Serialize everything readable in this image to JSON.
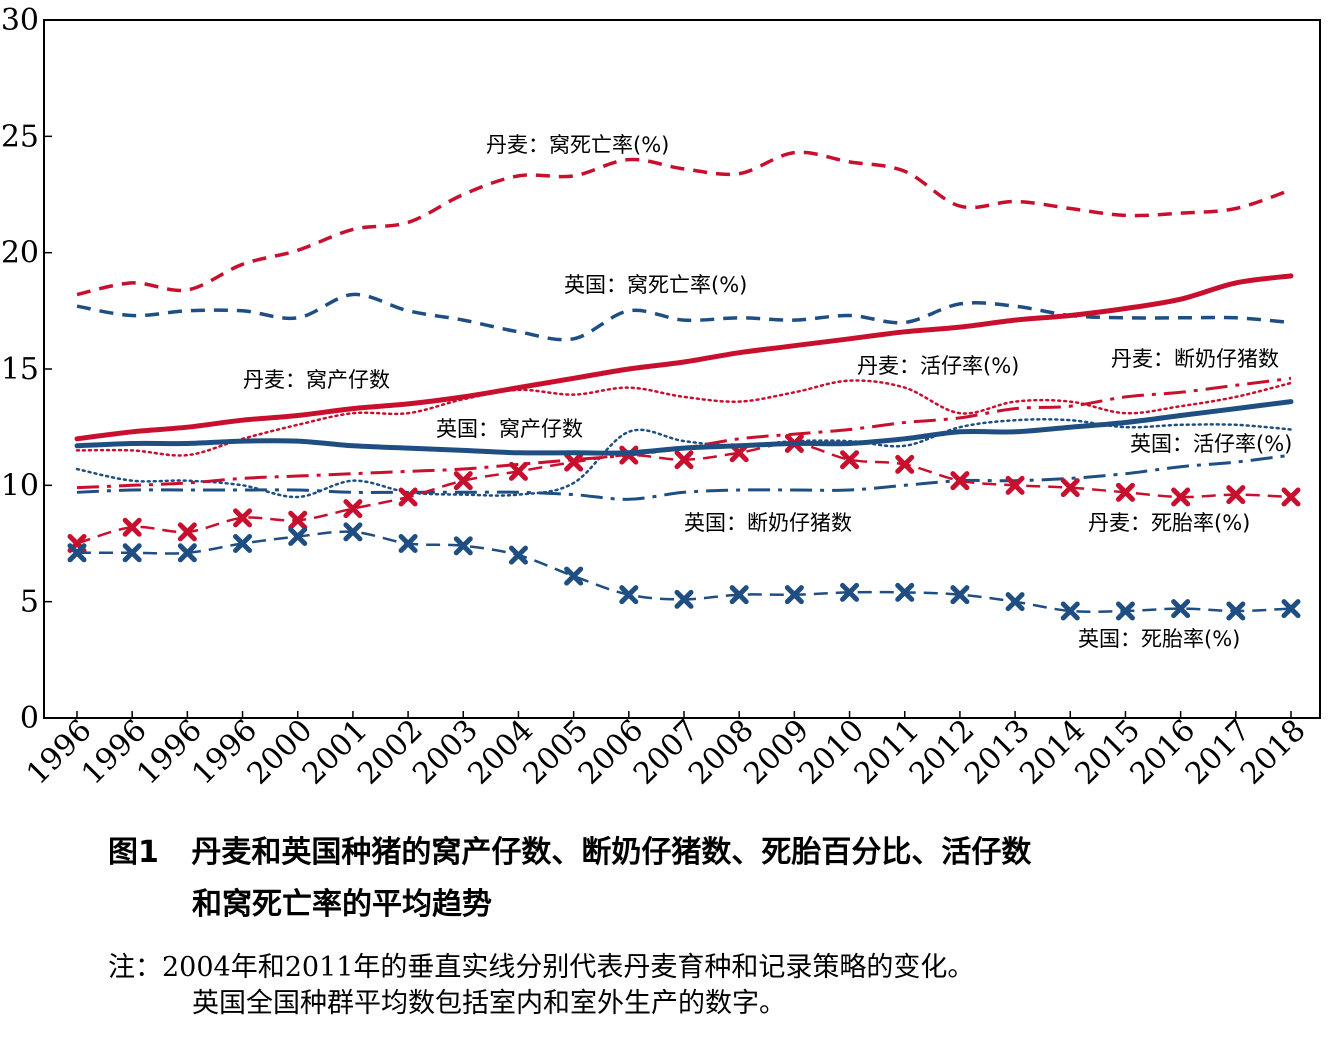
{
  "chart_data": {
    "type": "line",
    "ylim": [
      0,
      30
    ],
    "yticks": [
      0,
      5,
      10,
      15,
      20,
      25,
      30
    ],
    "categories": [
      "1996",
      "1996",
      "1996",
      "1996",
      "2000",
      "2001",
      "2002",
      "2003",
      "2004",
      "2005",
      "2006",
      "2007",
      "2008",
      "2009",
      "2010",
      "2011",
      "2012",
      "2013",
      "2014",
      "2015",
      "2016",
      "2017",
      "2018"
    ],
    "grid": false,
    "colors": {
      "denmark": "#c8102e",
      "uk": "#1f4e82"
    },
    "series": [
      {
        "name": "丹麦：窝死亡率(%)",
        "country": "denmark",
        "style": "dash",
        "values": [
          18.2,
          18.7,
          18.4,
          19.5,
          20.1,
          21.0,
          21.3,
          22.5,
          23.3,
          23.3,
          24.0,
          23.6,
          23.4,
          24.3,
          23.9,
          23.5,
          22.0,
          22.2,
          21.9,
          21.6,
          21.7,
          21.9,
          22.7
        ]
      },
      {
        "name": "英国：窝死亡率(%)",
        "country": "uk",
        "style": "dash",
        "values": [
          17.7,
          17.3,
          17.5,
          17.5,
          17.2,
          18.2,
          17.5,
          17.1,
          16.6,
          16.3,
          17.5,
          17.1,
          17.2,
          17.1,
          17.3,
          17.0,
          17.8,
          17.7,
          17.3,
          17.2,
          17.2,
          17.2,
          17.0
        ]
      },
      {
        "name": "丹麦：窝产仔数",
        "country": "denmark",
        "style": "solid",
        "values": [
          12.0,
          12.3,
          12.5,
          12.8,
          13.0,
          13.3,
          13.5,
          13.8,
          14.2,
          14.6,
          15.0,
          15.3,
          15.7,
          16.0,
          16.3,
          16.6,
          16.8,
          17.1,
          17.3,
          17.6,
          18.0,
          18.7,
          19.0
        ]
      },
      {
        "name": "英国：窝产仔数",
        "country": "uk",
        "style": "solid",
        "values": [
          11.7,
          11.8,
          11.8,
          11.9,
          11.9,
          11.7,
          11.6,
          11.5,
          11.4,
          11.4,
          11.4,
          11.6,
          11.7,
          11.8,
          11.8,
          12.0,
          12.3,
          12.3,
          12.5,
          12.7,
          13.0,
          13.3,
          13.6
        ]
      },
      {
        "name": "丹麦：活仔率(%)",
        "country": "denmark",
        "style": "dot",
        "values": [
          11.5,
          11.5,
          11.3,
          12.0,
          12.6,
          13.1,
          13.1,
          13.7,
          14.1,
          13.9,
          14.2,
          13.8,
          13.6,
          14.0,
          14.5,
          14.2,
          13.1,
          13.6,
          13.6,
          13.1,
          13.4,
          13.8,
          14.4
        ]
      },
      {
        "name": "英国：活仔率(%)",
        "country": "uk",
        "style": "dot",
        "values": [
          10.7,
          10.2,
          10.2,
          10.0,
          9.5,
          10.2,
          9.7,
          9.6,
          9.6,
          10.1,
          12.3,
          11.9,
          11.7,
          11.9,
          11.9,
          11.7,
          12.5,
          12.8,
          12.8,
          12.5,
          12.6,
          12.6,
          12.4
        ]
      },
      {
        "name": "丹麦：断奶仔猪数",
        "country": "denmark",
        "style": "dashdot",
        "values": [
          9.9,
          10.0,
          10.1,
          10.3,
          10.4,
          10.5,
          10.6,
          10.7,
          10.9,
          11.1,
          11.3,
          11.6,
          12.0,
          12.2,
          12.4,
          12.7,
          12.9,
          13.3,
          13.4,
          13.8,
          14.0,
          14.3,
          14.6
        ]
      },
      {
        "name": "英国：断奶仔猪数",
        "country": "uk",
        "style": "dashdot",
        "values": [
          9.7,
          9.8,
          9.8,
          9.8,
          9.8,
          9.7,
          9.7,
          9.7,
          9.7,
          9.6,
          9.4,
          9.7,
          9.8,
          9.8,
          9.8,
          10.0,
          10.2,
          10.2,
          10.3,
          10.5,
          10.8,
          11.0,
          11.3
        ]
      },
      {
        "name": "丹麦：死胎率(%)",
        "country": "denmark",
        "style": "dash-x",
        "values": [
          7.5,
          8.2,
          8.0,
          8.6,
          8.5,
          9.0,
          9.5,
          10.2,
          10.6,
          11.0,
          11.3,
          11.1,
          11.4,
          11.8,
          11.1,
          10.9,
          10.2,
          10.0,
          9.9,
          9.7,
          9.5,
          9.6,
          9.5
        ]
      },
      {
        "name": "英国：死胎率(%)",
        "country": "uk",
        "style": "dash-x",
        "values": [
          7.1,
          7.1,
          7.1,
          7.5,
          7.8,
          8.0,
          7.5,
          7.4,
          7.0,
          6.1,
          5.3,
          5.1,
          5.3,
          5.3,
          5.4,
          5.4,
          5.3,
          5.0,
          4.6,
          4.6,
          4.7,
          4.6,
          4.7
        ]
      }
    ],
    "annotations": [
      {
        "text": "丹麦：窝死亡率(%)"
      },
      {
        "text": "英国：窝死亡率(%)"
      },
      {
        "text": "丹麦：窝产仔数"
      },
      {
        "text": "英国：窝产仔数"
      },
      {
        "text": "丹麦：活仔率(%)"
      },
      {
        "text": "丹麦：断奶仔猪数"
      },
      {
        "text": "英国：活仔率(%)"
      },
      {
        "text": "英国：断奶仔猪数"
      },
      {
        "text": "丹麦：死胎率(%)"
      },
      {
        "text": "英国：死胎率(%)"
      }
    ]
  },
  "caption": {
    "label": "图1",
    "title_line1": "丹麦和英国种猪的窝产仔数、断奶仔猪数、死胎百分比、活仔数",
    "title_line2": "和窝死亡率的平均趋势",
    "note_line1": "注：2004年和2011年的垂直实线分别代表丹麦育种和记录策略的变化。",
    "note_line2": "英国全国种群平均数包括室内和室外生产的数字。"
  }
}
